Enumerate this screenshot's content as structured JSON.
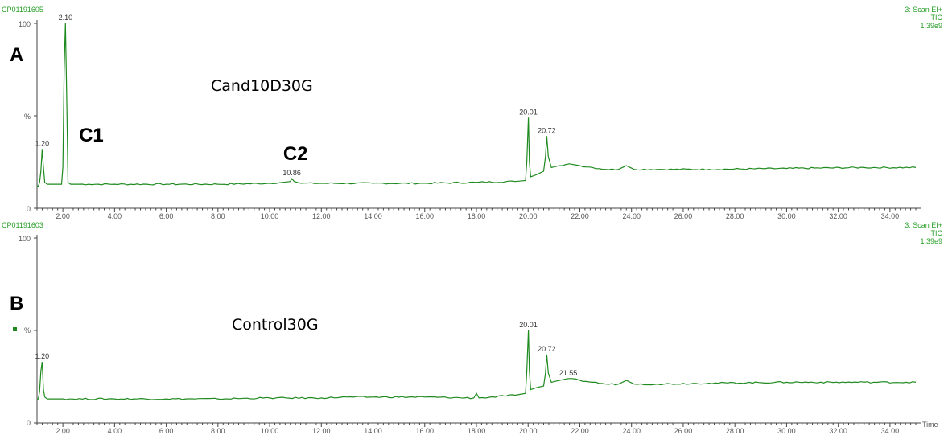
{
  "chart_data": [
    {
      "type": "line",
      "panel": "A",
      "header_left": "CP01191605",
      "header_right": [
        "3: Scan EI+",
        "TIC",
        "1.39e9"
      ],
      "sample": "Cand10D30G",
      "xlabel": "",
      "ylabel": "%",
      "xlim": [
        1.0,
        35.0
      ],
      "ylim": [
        0,
        100
      ],
      "x_ticks": [
        "2.00",
        "4.00",
        "6.00",
        "8.00",
        "10.00",
        "12.00",
        "14.00",
        "16.00",
        "18.00",
        "20.00",
        "22.00",
        "24.00",
        "26.00",
        "28.00",
        "30.00",
        "32.00",
        "34.00"
      ],
      "y_ticks": [
        "0",
        "%",
        "100"
      ],
      "trace": {
        "x": [
          1.0,
          1.05,
          1.1,
          1.15,
          1.2,
          1.25,
          1.3,
          1.4,
          1.6,
          1.8,
          1.95,
          2.0,
          2.05,
          2.1,
          2.15,
          2.2,
          2.3,
          2.5,
          3.0,
          4.0,
          6.0,
          8.0,
          10.0,
          10.5,
          10.8,
          10.86,
          10.95,
          11.2,
          12.0,
          14.0,
          16.0,
          18.0,
          19.5,
          19.9,
          19.95,
          20.01,
          20.05,
          20.1,
          20.3,
          20.6,
          20.67,
          20.72,
          20.78,
          20.9,
          21.2,
          21.6,
          22.0,
          22.5,
          23.0,
          23.5,
          23.8,
          24.1,
          25.0,
          27.0,
          30.0,
          33.0,
          35.0
        ],
        "y": [
          12,
          12,
          14,
          20,
          32,
          22,
          14,
          13,
          13,
          13,
          13,
          22,
          75,
          100,
          60,
          14,
          13,
          13,
          13,
          13,
          13,
          13,
          13.5,
          14,
          14.5,
          16,
          14.5,
          13.5,
          13.5,
          13.5,
          13.5,
          14,
          14.5,
          15,
          25,
          49,
          25,
          17,
          18,
          20,
          28,
          39,
          28,
          22,
          23,
          24,
          23,
          22,
          21,
          21,
          23,
          21,
          21,
          21,
          21.5,
          22,
          22
        ]
      },
      "peak_labels": [
        {
          "x": 1.2,
          "y": 32,
          "text": "1.20"
        },
        {
          "x": 2.1,
          "y": 100,
          "text": "2.10"
        },
        {
          "x": 10.86,
          "y": 16,
          "text": "10.86"
        },
        {
          "x": 20.01,
          "y": 49,
          "text": "20.01"
        },
        {
          "x": 20.72,
          "y": 39,
          "text": "20.72"
        }
      ],
      "annotations": [
        {
          "text": "C1",
          "x": 3.1,
          "y": 36
        },
        {
          "text": "C2",
          "x": 11.0,
          "y": 26
        }
      ]
    },
    {
      "type": "line",
      "panel": "B",
      "header_left": "CP01191603",
      "header_right": [
        "3: Scan EI+",
        "TIC",
        "1.39e9"
      ],
      "sample": "Control30G",
      "xlabel": "Time",
      "ylabel": "%",
      "xlim": [
        1.0,
        35.0
      ],
      "ylim": [
        0,
        100
      ],
      "x_ticks": [
        "2.00",
        "4.00",
        "6.00",
        "8.00",
        "10.00",
        "12.00",
        "14.00",
        "16.00",
        "18.00",
        "20.00",
        "22.00",
        "24.00",
        "26.00",
        "28.00",
        "30.00",
        "32.00",
        "34.00"
      ],
      "y_ticks": [
        "0",
        "%",
        "100"
      ],
      "trace": {
        "x": [
          1.0,
          1.05,
          1.1,
          1.15,
          1.2,
          1.25,
          1.3,
          1.4,
          1.6,
          2.0,
          4.0,
          6.0,
          8.0,
          10.0,
          12.0,
          13.0,
          14.0,
          16.0,
          17.9,
          18.0,
          18.1,
          19.5,
          19.9,
          19.95,
          20.01,
          20.05,
          20.1,
          20.3,
          20.6,
          20.67,
          20.72,
          20.78,
          20.9,
          21.2,
          21.55,
          22.0,
          22.5,
          23.0,
          23.5,
          23.8,
          24.1,
          25.0,
          27.0,
          30.0,
          33.0,
          35.0
        ],
        "y": [
          13,
          13,
          17,
          28,
          33,
          18,
          14,
          13,
          13,
          13,
          13,
          13,
          13,
          13.5,
          13.5,
          14,
          14,
          14,
          13.5,
          16,
          13.5,
          15,
          16,
          28,
          50,
          28,
          18,
          19,
          20,
          27,
          37,
          27,
          22,
          23,
          24,
          23,
          22,
          21,
          21,
          23,
          21,
          21,
          21.5,
          22,
          22,
          22
        ]
      },
      "peak_labels": [
        {
          "x": 1.2,
          "y": 33,
          "text": "1.20"
        },
        {
          "x": 20.01,
          "y": 50,
          "text": "20.01"
        },
        {
          "x": 20.72,
          "y": 37,
          "text": "20.72"
        },
        {
          "x": 21.55,
          "y": 24,
          "text": "21.55"
        }
      ],
      "annotations": []
    }
  ]
}
